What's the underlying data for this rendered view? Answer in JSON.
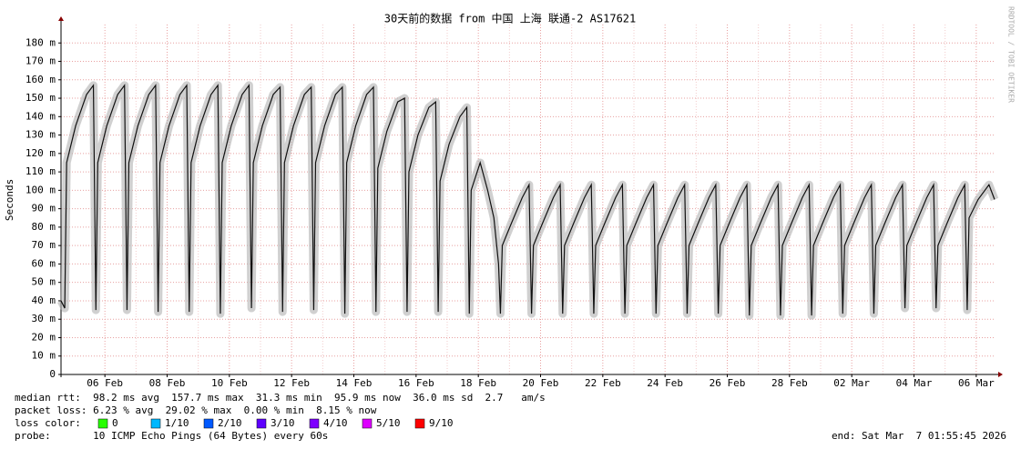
{
  "chart_data": {
    "type": "line",
    "title": "30天前的数据 from 中国 上海 联通-2 AS17621",
    "ylabel": "Seconds",
    "watermark": "RRDTOOL / TOBI OETIKER",
    "xlim": [
      4.59,
      34.59
    ],
    "xticks": [
      {
        "value": 6,
        "label": "06 Feb"
      },
      {
        "value": 8,
        "label": "08 Feb"
      },
      {
        "value": 10,
        "label": "10 Feb"
      },
      {
        "value": 12,
        "label": "12 Feb"
      },
      {
        "value": 14,
        "label": "14 Feb"
      },
      {
        "value": 16,
        "label": "16 Feb"
      },
      {
        "value": 18,
        "label": "18 Feb"
      },
      {
        "value": 20,
        "label": "20 Feb"
      },
      {
        "value": 22,
        "label": "22 Feb"
      },
      {
        "value": 24,
        "label": "24 Feb"
      },
      {
        "value": 26,
        "label": "26 Feb"
      },
      {
        "value": 28,
        "label": "28 Feb"
      },
      {
        "value": 30,
        "label": "02 Mar"
      },
      {
        "value": 32,
        "label": "04 Mar"
      },
      {
        "value": 34,
        "label": "06 Mar"
      }
    ],
    "ylim": [
      0,
      190
    ],
    "yticks": [
      0,
      {
        "value": 10,
        "label": "10 m"
      },
      {
        "value": 20,
        "label": "20 m"
      },
      {
        "value": 30,
        "label": "30 m"
      },
      {
        "value": 40,
        "label": "40 m"
      },
      {
        "value": 50,
        "label": "50 m"
      },
      {
        "value": 60,
        "label": "60 m"
      },
      {
        "value": 70,
        "label": "70 m"
      },
      {
        "value": 80,
        "label": "80 m"
      },
      {
        "value": 90,
        "label": "90 m"
      },
      {
        "value": 100,
        "label": "100 m"
      },
      {
        "value": 110,
        "label": "110 m"
      },
      {
        "value": 120,
        "label": "120 m"
      },
      {
        "value": 130,
        "label": "130 m"
      },
      {
        "value": 140,
        "label": "140 m"
      },
      {
        "value": 150,
        "label": "150 m"
      },
      {
        "value": 160,
        "label": "160 m"
      },
      {
        "value": 170,
        "label": "170 m"
      },
      {
        "value": 180,
        "label": "180 m"
      }
    ],
    "grid": true,
    "x": [
      4.59,
      4.71,
      4.77,
      5.06,
      5.41,
      5.63,
      5.71,
      5.77,
      6.06,
      6.41,
      6.63,
      6.71,
      6.77,
      7.06,
      7.41,
      7.63,
      7.71,
      7.77,
      8.06,
      8.41,
      8.63,
      8.71,
      8.77,
      9.06,
      9.41,
      9.63,
      9.71,
      9.77,
      10.06,
      10.41,
      10.63,
      10.71,
      10.77,
      11.06,
      11.41,
      11.63,
      11.71,
      11.77,
      12.06,
      12.41,
      12.63,
      12.71,
      12.77,
      13.06,
      13.41,
      13.63,
      13.71,
      13.77,
      14.06,
      14.41,
      14.63,
      14.71,
      14.77,
      15.06,
      15.41,
      15.63,
      15.71,
      15.77,
      16.06,
      16.41,
      16.63,
      16.71,
      16.77,
      17.06,
      17.41,
      17.63,
      17.71,
      17.77,
      18.06,
      18.3,
      18.5,
      18.65,
      18.71,
      18.77,
      19.06,
      19.41,
      19.63,
      19.71,
      19.77,
      20.06,
      20.41,
      20.63,
      20.71,
      20.77,
      21.06,
      21.41,
      21.63,
      21.71,
      21.77,
      22.06,
      22.41,
      22.63,
      22.71,
      22.77,
      23.06,
      23.41,
      23.63,
      23.71,
      23.77,
      24.06,
      24.41,
      24.63,
      24.71,
      24.77,
      25.06,
      25.41,
      25.63,
      25.71,
      25.77,
      26.06,
      26.41,
      26.63,
      26.71,
      26.77,
      27.06,
      27.41,
      27.63,
      27.71,
      27.77,
      28.06,
      28.41,
      28.63,
      28.71,
      28.77,
      29.06,
      29.41,
      29.63,
      29.71,
      29.77,
      30.06,
      30.41,
      30.63,
      30.71,
      30.77,
      31.06,
      31.41,
      31.63,
      31.71,
      31.77,
      32.06,
      32.41,
      32.63,
      32.71,
      32.77,
      33.06,
      33.41,
      33.63,
      33.71,
      33.77,
      34.06,
      34.41,
      34.59
    ],
    "series": [
      {
        "name": "median rtt",
        "color": "#111111",
        "smoke": "#b0b0b0",
        "values": [
          40,
          36,
          115,
          135,
          152,
          157,
          35,
          115,
          135,
          152,
          157,
          35,
          115,
          135,
          152,
          157,
          34,
          115,
          135,
          152,
          157,
          34,
          115,
          135,
          152,
          157,
          33,
          115,
          135,
          152,
          157,
          36,
          115,
          135,
          152,
          156,
          34,
          115,
          135,
          152,
          156,
          35,
          115,
          135,
          152,
          156,
          33,
          115,
          135,
          152,
          156,
          34,
          112,
          132,
          148,
          150,
          34,
          110,
          130,
          145,
          148,
          34,
          105,
          125,
          140,
          145,
          33,
          100,
          115,
          100,
          85,
          60,
          33,
          70,
          82,
          96,
          103,
          33,
          70,
          82,
          96,
          103,
          33,
          70,
          82,
          96,
          103,
          33,
          70,
          82,
          96,
          103,
          33,
          70,
          82,
          96,
          103,
          33,
          70,
          82,
          96,
          103,
          33,
          70,
          82,
          96,
          103,
          33,
          70,
          82,
          96,
          103,
          32,
          70,
          82,
          96,
          103,
          32,
          70,
          82,
          96,
          103,
          32,
          70,
          82,
          96,
          103,
          33,
          70,
          82,
          96,
          103,
          33,
          70,
          82,
          96,
          103,
          36,
          70,
          82,
          96,
          103,
          36,
          70,
          82,
          96,
          103,
          35,
          85,
          95,
          103,
          95
        ]
      }
    ],
    "stats": [
      "median rtt:  98.2 ms avg  157.7 ms max  31.3 ms min  95.9 ms now  36.0 ms sd  2.7   am/s",
      "packet loss: 6.23 % avg  29.02 % max  0.00 % min  8.15 % now"
    ],
    "loss_legend_label": "loss color:",
    "loss_colors": [
      {
        "label": "0",
        "color": "#26ff00"
      },
      {
        "label": "1/10",
        "color": "#00b8ff"
      },
      {
        "label": "2/10",
        "color": "#0059ff"
      },
      {
        "label": "3/10",
        "color": "#5e00ff"
      },
      {
        "label": "4/10",
        "color": "#7e00ff"
      },
      {
        "label": "5/10",
        "color": "#dd00ff"
      },
      {
        "label": "9/10",
        "color": "#ff0000"
      }
    ],
    "probe": "probe:       10 ICMP Echo Pings (64 Bytes) every 60s",
    "end": "end: Sat Mar  7 01:55:45 2026"
  }
}
